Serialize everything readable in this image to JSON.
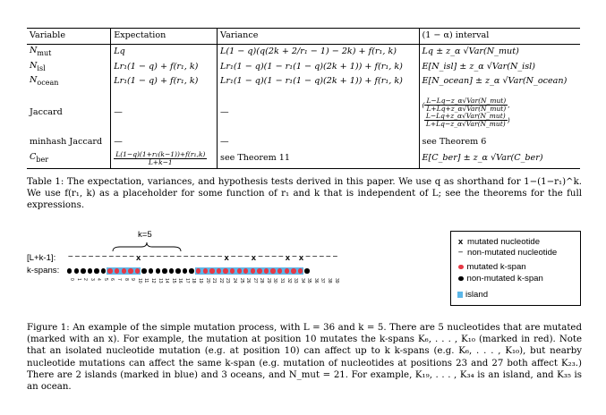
{
  "table": {
    "headers": [
      "Variable",
      "Expectation",
      "Variance",
      "(1 − α) interval"
    ],
    "rows": [
      {
        "var": "N",
        "var_sub": "mut",
        "exp": "Lq",
        "var_text": "L(1 − q)(q(2k + 2/r₁ − 1) − 2k) + f(r₁, k)",
        "interval": "Lq ± z_α √Var(N_mut)"
      },
      {
        "var": "N",
        "var_sub": "isl",
        "exp": "Lr₁(1 − q) + f(r₁, k)",
        "var_text": "Lr₁(1 − q)(1 − r₁(1 − q)(2k + 1)) + f(r₁, k)",
        "interval": "E[N_isl] ± z_α √Var(N_isl)"
      },
      {
        "var": "N",
        "var_sub": "ocean",
        "exp": "Lr₁(1 − q) + f(r₁, k)",
        "var_text": "Lr₁(1 − q)(1 − r₁(1 − q)(2k + 1)) + f(r₁, k)",
        "interval": "E[N_ocean] ± z_α √Var(N_ocean)"
      },
      {
        "var": "Jaccard",
        "var_sub": "",
        "exp": "—",
        "var_text": "—",
        "interval_lines": [
          "L−Lq−z_α√Var(N_mut)",
          "L+Lq+z_α√Var(N_mut)",
          "L−Lq+z_α√Var(N_mut)",
          "L+Lq−z_α√Var(N_mut)"
        ]
      },
      {
        "var": "minhash Jaccard",
        "var_sub": "",
        "exp": "—",
        "var_text": "—",
        "interval": "see Theorem 6"
      },
      {
        "var": "C",
        "var_sub": "ber",
        "exp_num": "L(1−q)(1+r₁(k−1))+f(r₁,k)",
        "exp_den": "L+k−1",
        "var_text": "see Theorem 11",
        "interval": "E[C_ber] ± z_α √Var(C_ber)"
      }
    ]
  },
  "table_caption": "Table 1: The expectation, variances, and hypothesis tests derived in this paper. We use q as shorthand for 1−(1−r₁)^k. We use f(r₁, k) as a placeholder for some function of r₁ and k that is independent of L; see the theorems for the full expressions.",
  "figure": {
    "k_label": "k=5",
    "seq_label": "[L+k-1]:",
    "kspan_label": "k-spans:",
    "sequence_length": 40,
    "kspan_count": 36,
    "mutated_positions": [
      10,
      23,
      27,
      32,
      34
    ],
    "islands": [
      [
        6,
        10
      ],
      [
        19,
        34
      ]
    ],
    "indices": [
      "0",
      "1",
      "2",
      "3",
      "4",
      "5",
      "6",
      "7",
      "8",
      "9",
      "10",
      "11",
      "12",
      "13",
      "14",
      "15",
      "16",
      "17",
      "18",
      "19",
      "20",
      "21",
      "22",
      "23",
      "24",
      "25",
      "26",
      "27",
      "28",
      "29",
      "30",
      "31",
      "32",
      "33",
      "34",
      "35",
      "36",
      "37",
      "38",
      "39"
    ],
    "colors": {
      "island": "#5bb6e8",
      "mutated": "#e63946",
      "non_mutated": "#000000"
    },
    "legend": [
      {
        "mark": "x",
        "label": "mutated nucleotide"
      },
      {
        "mark": "−",
        "label": "non-mutated nucleotide"
      },
      {
        "mark": "red-dot",
        "label": "mutated k-span"
      },
      {
        "mark": "black-dot",
        "label": "non-mutated k-span"
      },
      {
        "mark": "blue-square",
        "label": "island"
      }
    ]
  },
  "figure_caption": "Figure 1: An example of the simple mutation process, with L = 36 and k = 5. There are 5 nucleotides that are mutated (marked with an x). For example, the mutation at position 10 mutates the k-spans K₆, . . . , K₁₀ (marked in red). Note that an isolated nucleotide mutation (e.g. at position 10) can affect up to k k-spans (e.g. K₆, . . . , K₁₀), but nearby nucleotide mutations can affect the same k-span (e.g. mutation of nucleotides at positions 23 and 27 both affect K₂₃.) There are 2 islands (marked in blue) and 3 oceans, and N_mut = 21. For example, K₁₉, . . . , K₃₄ is an island, and K₃₅ is an ocean."
}
